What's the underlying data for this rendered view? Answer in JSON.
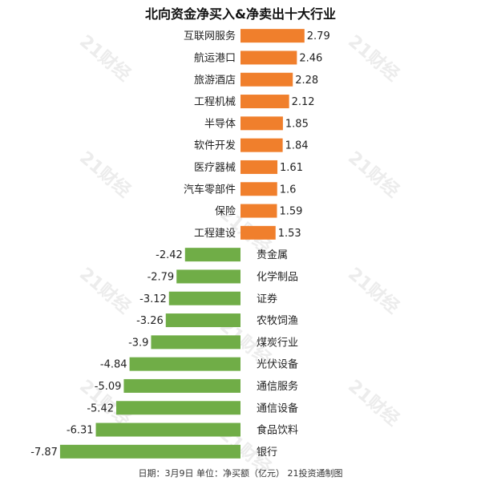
{
  "chart_data": {
    "type": "bar",
    "title": "北向资金净买入&净卖出十大行业",
    "footer": "日期：3月9日  单位：净买额（亿元）  21投资通制图",
    "watermark": "21财经",
    "colors": {
      "positive": "#f07f2c",
      "negative": "#70ad47"
    },
    "categories": [
      "互联网服务",
      "航运港口",
      "旅游酒店",
      "工程机械",
      "半导体",
      "软件开发",
      "医疗器械",
      "汽车零部件",
      "保险",
      "工程建设",
      "贵金属",
      "化学制品",
      "证券",
      "农牧饲渔",
      "煤炭行业",
      "光伏设备",
      "通信服务",
      "通信设备",
      "食品饮料",
      "银行"
    ],
    "values": [
      2.79,
      2.46,
      2.28,
      2.12,
      1.85,
      1.84,
      1.61,
      1.6,
      1.59,
      1.53,
      -2.42,
      -2.79,
      -3.12,
      -3.26,
      -3.9,
      -4.84,
      -5.09,
      -5.42,
      -6.31,
      -7.87
    ],
    "value_labels": [
      "2.79",
      "2.46",
      "2.28",
      "2.12",
      "1.85",
      "1.84",
      "1.61",
      "1.6",
      "1.59",
      "1.53",
      "-2.42",
      "-2.79",
      "-3.12",
      "-3.26",
      "-3.9",
      "-4.84",
      "-5.09",
      "-5.42",
      "-6.31",
      "-7.87"
    ]
  }
}
